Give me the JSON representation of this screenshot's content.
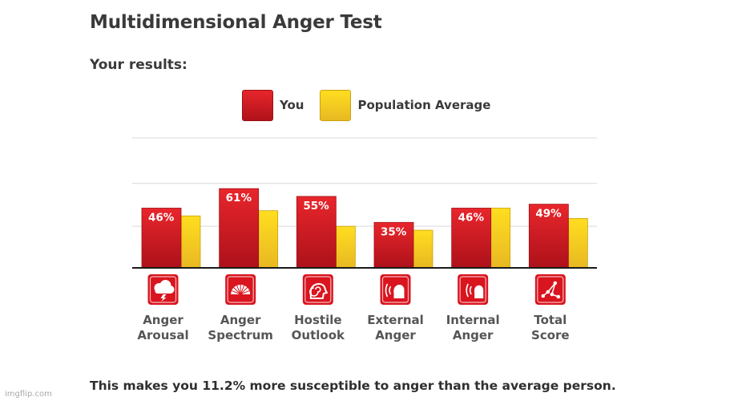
{
  "page": {
    "title": "Multidimensional Anger Test",
    "subtitle": "Your results:",
    "footer": "This makes you 11.2% more susceptible to anger than the average person.",
    "watermark": "imgflip.com"
  },
  "legend": {
    "you_label": "You",
    "avg_label": "Population Average"
  },
  "colors": {
    "you_top": "#e8262c",
    "you_bottom": "#ad111a",
    "avg_top": "#ffde20",
    "avg_bottom": "#e8b822",
    "axis": "#1a1a1a",
    "grid": "#d9d9d9",
    "icon_bg": "#d9151f",
    "label_text": "#555555"
  },
  "chart_data": {
    "type": "bar",
    "categories": [
      "Anger Arousal",
      "Anger Spectrum",
      "Hostile Outlook",
      "External Anger",
      "Internal Anger",
      "Total Score"
    ],
    "category_lines": [
      [
        "Anger",
        "Arousal"
      ],
      [
        "Anger",
        "Spectrum"
      ],
      [
        "Hostile",
        "Outlook"
      ],
      [
        "External",
        "Anger"
      ],
      [
        "Internal",
        "Anger"
      ],
      [
        "Total",
        "Score"
      ]
    ],
    "icons": [
      "storm-cloud-icon",
      "fan-gauge-icon",
      "head-spiral-icon",
      "outward-head-icon",
      "inward-head-icon",
      "constellation-icon"
    ],
    "series": [
      {
        "name": "You",
        "values": [
          46,
          61,
          55,
          35,
          46,
          49
        ]
      },
      {
        "name": "Population Average",
        "values": [
          40,
          44,
          32,
          29,
          46,
          38
        ]
      }
    ],
    "data_labels": [
      "46%",
      "61%",
      "55%",
      "35%",
      "46%",
      "49%"
    ],
    "ylim": [
      0,
      100
    ],
    "grid": true,
    "legend_position": "top"
  }
}
